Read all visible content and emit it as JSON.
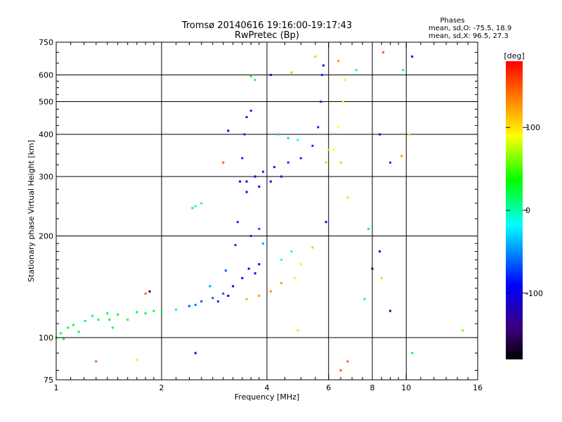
{
  "chart_data": {
    "type": "scatter",
    "title": "Tromsø 20140616 19:16:00-19:17:43",
    "subtitle": "RwPretec (Bp)",
    "xlabel": "Frequency [MHz]",
    "ylabel": "Stationary phase Virtual Height [km]",
    "x_scale": "log",
    "y_scale": "log",
    "xlim": [
      1,
      16
    ],
    "ylim": [
      75,
      750
    ],
    "x_ticks": [
      1,
      2,
      4,
      6,
      8,
      10,
      16
    ],
    "x_tick_labels": [
      "1",
      "2",
      "4",
      "6",
      "8",
      "10",
      "16"
    ],
    "x_minor_ticks": [
      1.1,
      1.2,
      1.3,
      1.4,
      1.5,
      1.6,
      1.7,
      1.8,
      1.9,
      2.2,
      2.4,
      2.6,
      2.8,
      3,
      3.2,
      3.4,
      3.6,
      3.8,
      4.5,
      5,
      5.5,
      6.5,
      7,
      7.5,
      8.5,
      9,
      9.5,
      11,
      12,
      13,
      14,
      15
    ],
    "x_grid": [
      2,
      4,
      6,
      8,
      10
    ],
    "y_ticks": [
      75,
      100,
      200,
      300,
      400,
      500,
      600,
      750
    ],
    "y_tick_labels": [
      "75",
      "100",
      "200",
      "300",
      "400",
      "500",
      "600",
      "750"
    ],
    "y_minor_ticks": [
      80,
      90,
      110,
      120,
      130,
      140,
      150,
      160,
      170,
      180,
      190,
      225,
      250,
      275,
      325,
      350,
      375,
      425,
      450,
      475,
      525,
      550,
      575,
      650,
      700
    ],
    "y_grid": [
      100,
      200,
      300,
      400,
      500,
      600
    ],
    "grid": true,
    "legend": {
      "title": "Phases",
      "entries": [
        "mean, sd,O: -75.5, 18.9",
        "mean, sd,X: 96.5, 27.3"
      ],
      "placement": "top-right"
    },
    "colorbar": {
      "label": "[deg]",
      "range": [
        -180,
        180
      ],
      "ticks": [
        100,
        0,
        -100
      ],
      "tick_labels": [
        "100",
        "0",
        "-100"
      ]
    },
    "points": [
      {
        "x": 1.0,
        "y": 100,
        "phase": -10
      },
      {
        "x": 1.03,
        "y": 103,
        "phase": -10
      },
      {
        "x": 1.05,
        "y": 99,
        "phase": -10
      },
      {
        "x": 1.08,
        "y": 107,
        "phase": -10
      },
      {
        "x": 1.12,
        "y": 109,
        "phase": -10
      },
      {
        "x": 1.16,
        "y": 104,
        "phase": -10
      },
      {
        "x": 1.21,
        "y": 112,
        "phase": -10
      },
      {
        "x": 1.27,
        "y": 116,
        "phase": -10
      },
      {
        "x": 1.32,
        "y": 113,
        "phase": -10
      },
      {
        "x": 1.4,
        "y": 118,
        "phase": -10
      },
      {
        "x": 1.5,
        "y": 117,
        "phase": -10
      },
      {
        "x": 1.6,
        "y": 113,
        "phase": -10
      },
      {
        "x": 1.7,
        "y": 119,
        "phase": -10
      },
      {
        "x": 1.8,
        "y": 118,
        "phase": -10
      },
      {
        "x": 1.9,
        "y": 120,
        "phase": -10
      },
      {
        "x": 2.0,
        "y": 119,
        "phase": -10
      },
      {
        "x": 2.2,
        "y": 121,
        "phase": -30
      },
      {
        "x": 1.42,
        "y": 113,
        "phase": -10
      },
      {
        "x": 1.45,
        "y": 107,
        "phase": -10
      },
      {
        "x": 2.4,
        "y": 124,
        "phase": -80
      },
      {
        "x": 2.6,
        "y": 128,
        "phase": -80
      },
      {
        "x": 2.8,
        "y": 131,
        "phase": -80
      },
      {
        "x": 3.0,
        "y": 135,
        "phase": -80
      },
      {
        "x": 3.2,
        "y": 142,
        "phase": -100
      },
      {
        "x": 3.4,
        "y": 150,
        "phase": -100
      },
      {
        "x": 2.5,
        "y": 125,
        "phase": -70
      },
      {
        "x": 2.9,
        "y": 128,
        "phase": -90
      },
      {
        "x": 3.1,
        "y": 133,
        "phase": -100
      },
      {
        "x": 2.75,
        "y": 142,
        "phase": -60
      },
      {
        "x": 3.05,
        "y": 158,
        "phase": -80
      },
      {
        "x": 3.25,
        "y": 188,
        "phase": -90
      },
      {
        "x": 3.3,
        "y": 220,
        "phase": -90
      },
      {
        "x": 3.35,
        "y": 290,
        "phase": -100
      },
      {
        "x": 3.4,
        "y": 340,
        "phase": -90
      },
      {
        "x": 3.45,
        "y": 400,
        "phase": -90
      },
      {
        "x": 3.5,
        "y": 450,
        "phase": -90
      },
      {
        "x": 3.6,
        "y": 470,
        "phase": -90
      },
      {
        "x": 3.55,
        "y": 160,
        "phase": -110
      },
      {
        "x": 3.7,
        "y": 155,
        "phase": -100
      },
      {
        "x": 3.8,
        "y": 165,
        "phase": -110
      },
      {
        "x": 3.6,
        "y": 200,
        "phase": -90
      },
      {
        "x": 3.8,
        "y": 210,
        "phase": -80
      },
      {
        "x": 3.9,
        "y": 190,
        "phase": -60
      },
      {
        "x": 3.5,
        "y": 290,
        "phase": -110
      },
      {
        "x": 3.7,
        "y": 300,
        "phase": -100
      },
      {
        "x": 3.9,
        "y": 310,
        "phase": -90
      },
      {
        "x": 4.2,
        "y": 320,
        "phase": -90
      },
      {
        "x": 4.6,
        "y": 330,
        "phase": -90
      },
      {
        "x": 5.0,
        "y": 340,
        "phase": -90
      },
      {
        "x": 5.4,
        "y": 370,
        "phase": -90
      },
      {
        "x": 5.6,
        "y": 420,
        "phase": -90
      },
      {
        "x": 5.7,
        "y": 500,
        "phase": -90
      },
      {
        "x": 5.75,
        "y": 600,
        "phase": -90
      },
      {
        "x": 5.8,
        "y": 640,
        "phase": -100
      },
      {
        "x": 3.5,
        "y": 270,
        "phase": -100
      },
      {
        "x": 3.8,
        "y": 280,
        "phase": -100
      },
      {
        "x": 4.1,
        "y": 290,
        "phase": -100
      },
      {
        "x": 4.4,
        "y": 300,
        "phase": -100
      },
      {
        "x": 4.3,
        "y": 400,
        "phase": -50
      },
      {
        "x": 4.6,
        "y": 390,
        "phase": -50
      },
      {
        "x": 4.9,
        "y": 385,
        "phase": -40
      },
      {
        "x": 4.4,
        "y": 170,
        "phase": -40
      },
      {
        "x": 4.7,
        "y": 180,
        "phase": -30
      },
      {
        "x": 3.5,
        "y": 130,
        "phase": 120
      },
      {
        "x": 3.8,
        "y": 133,
        "phase": 130
      },
      {
        "x": 4.1,
        "y": 137,
        "phase": 130
      },
      {
        "x": 4.4,
        "y": 145,
        "phase": 130
      },
      {
        "x": 4.8,
        "y": 150,
        "phase": 80
      },
      {
        "x": 5.0,
        "y": 165,
        "phase": 80
      },
      {
        "x": 6.2,
        "y": 360,
        "phase": 90
      },
      {
        "x": 6.4,
        "y": 420,
        "phase": 90
      },
      {
        "x": 6.6,
        "y": 500,
        "phase": 80
      },
      {
        "x": 6.7,
        "y": 580,
        "phase": 80
      },
      {
        "x": 5.9,
        "y": 330,
        "phase": 60
      },
      {
        "x": 6.0,
        "y": 360,
        "phase": 60
      },
      {
        "x": 2.5,
        "y": 245,
        "phase": -30
      },
      {
        "x": 2.6,
        "y": 250,
        "phase": -30
      },
      {
        "x": 2.45,
        "y": 242,
        "phase": -50
      },
      {
        "x": 3.6,
        "y": 595,
        "phase": -10
      },
      {
        "x": 3.7,
        "y": 580,
        "phase": -20
      },
      {
        "x": 4.1,
        "y": 600,
        "phase": -100
      },
      {
        "x": 6.4,
        "y": 660,
        "phase": 130
      },
      {
        "x": 7.2,
        "y": 620,
        "phase": -20
      },
      {
        "x": 9.8,
        "y": 620,
        "phase": -20
      },
      {
        "x": 10.4,
        "y": 680,
        "phase": -100
      },
      {
        "x": 8.6,
        "y": 700,
        "phase": 150
      },
      {
        "x": 8.4,
        "y": 400,
        "phase": -100
      },
      {
        "x": 9.0,
        "y": 330,
        "phase": -90
      },
      {
        "x": 7.6,
        "y": 130,
        "phase": -20
      },
      {
        "x": 8.0,
        "y": 160,
        "phase": -160
      },
      {
        "x": 8.5,
        "y": 150,
        "phase": 60
      },
      {
        "x": 9.0,
        "y": 120,
        "phase": -130
      },
      {
        "x": 6.8,
        "y": 85,
        "phase": 150
      },
      {
        "x": 6.5,
        "y": 80,
        "phase": 150
      },
      {
        "x": 10.4,
        "y": 90,
        "phase": -10
      },
      {
        "x": 14.5,
        "y": 105,
        "phase": 40
      },
      {
        "x": 2.5,
        "y": 90,
        "phase": -100
      },
      {
        "x": 1.3,
        "y": 85,
        "phase": 150
      },
      {
        "x": 1.7,
        "y": 86,
        "phase": 80
      },
      {
        "x": 1.8,
        "y": 135,
        "phase": 150
      },
      {
        "x": 1.85,
        "y": 137,
        "phase": -150
      },
      {
        "x": 4.9,
        "y": 105,
        "phase": 100
      },
      {
        "x": 5.4,
        "y": 185,
        "phase": 50
      },
      {
        "x": 6.8,
        "y": 260,
        "phase": 70
      },
      {
        "x": 5.9,
        "y": 220,
        "phase": -110
      },
      {
        "x": 3.1,
        "y": 410,
        "phase": -100
      },
      {
        "x": 3.0,
        "y": 330,
        "phase": 150
      },
      {
        "x": 7.8,
        "y": 210,
        "phase": -10
      },
      {
        "x": 8.4,
        "y": 180,
        "phase": -100
      },
      {
        "x": 10.2,
        "y": 400,
        "phase": 100
      },
      {
        "x": 9.7,
        "y": 345,
        "phase": 130
      },
      {
        "x": 4.7,
        "y": 610,
        "phase": 120
      },
      {
        "x": 5.5,
        "y": 680,
        "phase": 110
      },
      {
        "x": 6.5,
        "y": 330,
        "phase": 50
      }
    ]
  }
}
